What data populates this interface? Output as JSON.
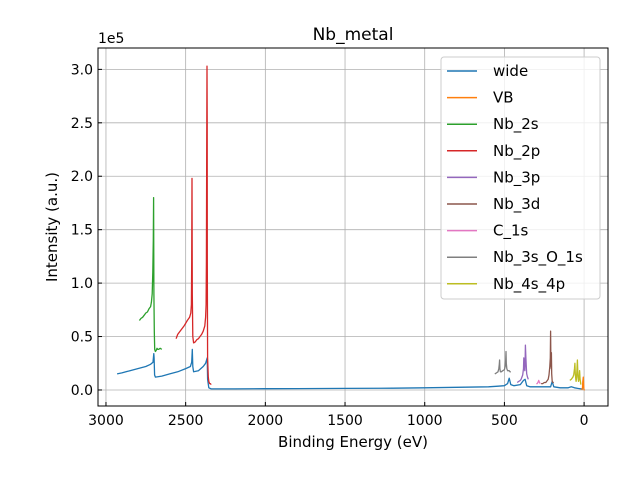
{
  "chart_data": {
    "type": "line",
    "title": "Nb_metal",
    "xlabel": "Binding Energy (eV)",
    "ylabel": "Intensity (a.u.)",
    "offset_text": "1e5",
    "x_reversed": true,
    "xlim": [
      3050,
      -150
    ],
    "ylim": [
      -0.15,
      3.2
    ],
    "y_scale_factor": 100000,
    "x_ticks": [
      3000,
      2500,
      2000,
      1500,
      1000,
      500,
      0
    ],
    "x_tick_labels": [
      "3000",
      "2500",
      "2000",
      "1500",
      "1000",
      "500",
      "0"
    ],
    "y_ticks": [
      0.0,
      0.5,
      1.0,
      1.5,
      2.0,
      2.5,
      3.0
    ],
    "y_tick_labels": [
      "0.0",
      "0.5",
      "1.0",
      "1.5",
      "2.0",
      "2.5",
      "3.0"
    ],
    "grid": true,
    "legend_position": "upper right",
    "series": [
      {
        "name": "wide",
        "color": "#1f77b4",
        "x": [
          2930,
          2900,
          2850,
          2800,
          2750,
          2720,
          2705,
          2700,
          2698,
          2695,
          2690,
          2650,
          2600,
          2550,
          2500,
          2470,
          2462,
          2458,
          2455,
          2450,
          2420,
          2390,
          2375,
          2365,
          2362,
          2355,
          2340,
          2300,
          2200,
          2000,
          1800,
          1500,
          1200,
          1000,
          800,
          600,
          540,
          500,
          480,
          470,
          460,
          440,
          400,
          380,
          370,
          360,
          340,
          300,
          250,
          210,
          200,
          190,
          150,
          100,
          80,
          60,
          40,
          20,
          5
        ],
        "y": [
          0.15,
          0.16,
          0.18,
          0.2,
          0.22,
          0.24,
          0.26,
          0.34,
          0.3,
          0.14,
          0.12,
          0.13,
          0.15,
          0.17,
          0.2,
          0.22,
          0.26,
          0.38,
          0.22,
          0.17,
          0.18,
          0.22,
          0.25,
          0.3,
          0.1,
          0.02,
          0.01,
          0.01,
          0.01,
          0.012,
          0.013,
          0.015,
          0.017,
          0.02,
          0.025,
          0.03,
          0.035,
          0.04,
          0.06,
          0.11,
          0.05,
          0.04,
          0.05,
          0.09,
          0.1,
          0.04,
          0.03,
          0.03,
          0.03,
          0.03,
          0.08,
          0.03,
          0.02,
          0.02,
          0.03,
          0.02,
          0.015,
          0.01,
          0.01
        ]
      },
      {
        "name": "VB",
        "color": "#ff7f0e",
        "x": [
          15,
          10,
          8,
          5,
          3,
          1,
          -1,
          -3
        ],
        "y": [
          0.0,
          0.02,
          0.08,
          0.12,
          0.05,
          0.01,
          0.0,
          0.0
        ]
      },
      {
        "name": "Nb_2s",
        "color": "#2ca02c",
        "x": [
          2790,
          2780,
          2770,
          2760,
          2750,
          2740,
          2730,
          2720,
          2715,
          2710,
          2706,
          2703,
          2701,
          2699,
          2697,
          2694,
          2690,
          2685,
          2680,
          2675,
          2670,
          2660,
          2650
        ],
        "y": [
          0.65,
          0.67,
          0.68,
          0.7,
          0.72,
          0.73,
          0.76,
          0.78,
          0.82,
          0.9,
          1.1,
          1.4,
          1.8,
          0.9,
          0.55,
          0.38,
          0.36,
          0.37,
          0.39,
          0.38,
          0.38,
          0.39,
          0.38
        ]
      },
      {
        "name": "Nb_2p",
        "color": "#d62728",
        "x": [
          2560,
          2550,
          2530,
          2510,
          2490,
          2475,
          2468,
          2464,
          2462,
          2460,
          2458,
          2455,
          2450,
          2440,
          2430,
          2420,
          2410,
          2400,
          2390,
          2380,
          2375,
          2372,
          2370,
          2368,
          2366,
          2365,
          2364,
          2362,
          2358,
          2355,
          2350,
          2345,
          2340
        ],
        "y": [
          0.48,
          0.52,
          0.56,
          0.6,
          0.65,
          0.68,
          0.72,
          0.8,
          1.2,
          1.98,
          0.9,
          0.5,
          0.44,
          0.45,
          0.47,
          0.48,
          0.5,
          0.52,
          0.55,
          0.6,
          0.68,
          0.8,
          1.2,
          2.2,
          3.03,
          2.5,
          1.2,
          0.3,
          0.12,
          0.08,
          0.06,
          0.06,
          0.05
        ]
      },
      {
        "name": "Nb_3p",
        "color": "#9467bd",
        "x": [
          420,
          410,
          400,
          395,
          390,
          385,
          380,
          378,
          375,
          372,
          370,
          368,
          365,
          362,
          360,
          355,
          350
        ],
        "y": [
          0.07,
          0.08,
          0.09,
          0.1,
          0.12,
          0.14,
          0.2,
          0.3,
          0.22,
          0.18,
          0.25,
          0.42,
          0.3,
          0.2,
          0.15,
          0.12,
          0.1
        ]
      },
      {
        "name": "Nb_3d",
        "color": "#8c564b",
        "x": [
          270,
          260,
          250,
          240,
          235,
          230,
          225,
          220,
          215,
          212,
          210,
          208,
          206,
          205,
          203,
          200,
          195,
          190
        ],
        "y": [
          0.06,
          0.06,
          0.07,
          0.07,
          0.08,
          0.09,
          0.1,
          0.14,
          0.22,
          0.3,
          0.55,
          0.25,
          0.2,
          0.35,
          0.15,
          0.08,
          0.07,
          0.07
        ]
      },
      {
        "name": "C_1s",
        "color": "#e377c2",
        "x": [
          300,
          295,
          290,
          287,
          285,
          283,
          280,
          275
        ],
        "y": [
          0.06,
          0.06,
          0.07,
          0.08,
          0.09,
          0.08,
          0.07,
          0.06
        ]
      },
      {
        "name": "Nb_3s_O_1s",
        "color": "#7f7f7f",
        "x": [
          560,
          550,
          540,
          535,
          532,
          530,
          528,
          525,
          520,
          510,
          500,
          495,
          492,
          490,
          488,
          485,
          480,
          470,
          465,
          460
        ],
        "y": [
          0.15,
          0.16,
          0.17,
          0.2,
          0.24,
          0.28,
          0.2,
          0.17,
          0.17,
          0.18,
          0.19,
          0.22,
          0.28,
          0.36,
          0.25,
          0.2,
          0.18,
          0.18,
          0.17,
          0.17
        ]
      },
      {
        "name": "Nb_4s_4p",
        "color": "#bcbd22",
        "x": [
          90,
          80,
          70,
          65,
          60,
          58,
          55,
          52,
          50,
          48,
          45,
          42,
          40,
          38,
          35,
          32,
          30,
          28,
          25,
          20
        ],
        "y": [
          0.09,
          0.1,
          0.12,
          0.14,
          0.2,
          0.25,
          0.15,
          0.1,
          0.08,
          0.1,
          0.18,
          0.28,
          0.2,
          0.12,
          0.08,
          0.1,
          0.14,
          0.18,
          0.1,
          0.05
        ]
      }
    ]
  }
}
